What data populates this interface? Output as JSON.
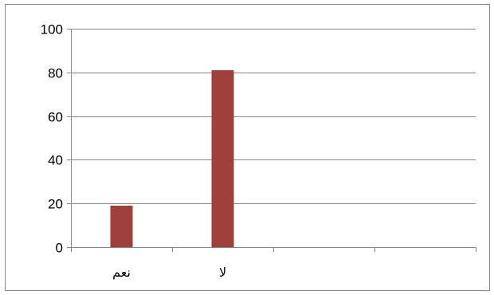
{
  "chart_data": {
    "type": "bar",
    "categories": [
      "نعم",
      "لا",
      "",
      ""
    ],
    "values": [
      19,
      81,
      null,
      null
    ],
    "title": "",
    "xlabel": "",
    "ylabel": "",
    "ylim": [
      0,
      100
    ],
    "yticks": [
      0,
      20,
      40,
      60,
      80,
      100
    ],
    "grid": true,
    "legend": "none",
    "bar_color": "#a0403c",
    "grid_color": "#868686",
    "border_color": "#868686"
  }
}
